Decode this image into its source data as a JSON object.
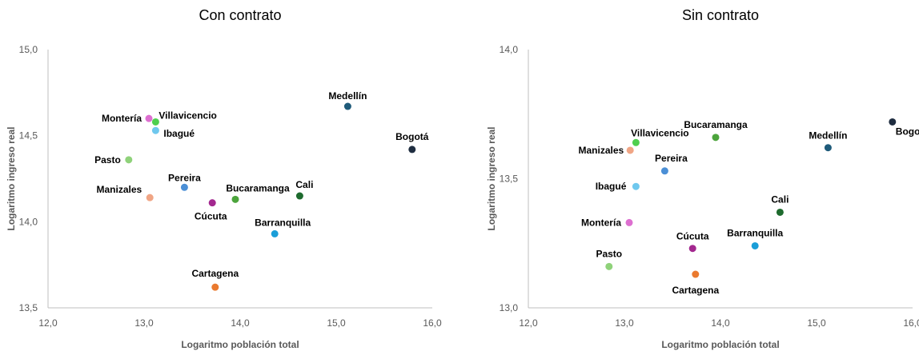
{
  "chart_data": [
    {
      "type": "scatter",
      "title": "Con contrato",
      "xlabel": "Logaritmo población total",
      "ylabel": "Logaritmo ingreso real",
      "xlim": [
        12.0,
        16.0
      ],
      "ylim": [
        13.5,
        15.0
      ],
      "xticks": [
        "12,0",
        "13,0",
        "14,0",
        "15,0",
        "16,0"
      ],
      "yticks": [
        "13,5",
        "14,0",
        "14,5",
        "15,0"
      ],
      "grid": false,
      "points": [
        {
          "label": "Bogotá",
          "x": 15.79,
          "y": 14.42,
          "color": "#1f2d40"
        },
        {
          "label": "Medellín",
          "x": 15.12,
          "y": 14.67,
          "color": "#1f5b7a"
        },
        {
          "label": "Cali",
          "x": 14.62,
          "y": 14.15,
          "color": "#1e6b2e"
        },
        {
          "label": "Barranquilla",
          "x": 14.36,
          "y": 13.93,
          "color": "#1a9ed8"
        },
        {
          "label": "Cartagena",
          "x": 13.74,
          "y": 13.62,
          "color": "#ea7a2f"
        },
        {
          "label": "Bucaramanga",
          "x": 13.95,
          "y": 14.13,
          "color": "#4ca43c"
        },
        {
          "label": "Cúcuta",
          "x": 13.71,
          "y": 14.11,
          "color": "#a3288f"
        },
        {
          "label": "Pereira",
          "x": 13.42,
          "y": 14.2,
          "color": "#4b8fd6"
        },
        {
          "label": "Ibagué",
          "x": 13.12,
          "y": 14.53,
          "color": "#6fc8ee"
        },
        {
          "label": "Manizales",
          "x": 13.06,
          "y": 14.14,
          "color": "#f0a585"
        },
        {
          "label": "Pasto",
          "x": 12.84,
          "y": 14.36,
          "color": "#8fd27a"
        },
        {
          "label": "Villavicencio",
          "x": 13.12,
          "y": 14.58,
          "color": "#4fcf4f"
        },
        {
          "label": "Montería",
          "x": 13.05,
          "y": 14.6,
          "color": "#dd6fd0"
        }
      ]
    },
    {
      "type": "scatter",
      "title": "Sin contrato",
      "xlabel": "Logaritmo población total",
      "ylabel": "Logaritmo ingreso real",
      "xlim": [
        12.0,
        16.0
      ],
      "ylim": [
        13.0,
        14.0
      ],
      "xticks": [
        "12,0",
        "13,0",
        "14,0",
        "15,0",
        "16,0"
      ],
      "yticks": [
        "13,0",
        "13,5",
        "14,0"
      ],
      "grid": false,
      "points": [
        {
          "label": "Bogotá",
          "x": 15.79,
          "y": 13.72,
          "color": "#1f2d40"
        },
        {
          "label": "Medellín",
          "x": 15.12,
          "y": 13.62,
          "color": "#1f5b7a"
        },
        {
          "label": "Cali",
          "x": 14.62,
          "y": 13.37,
          "color": "#1e6b2e"
        },
        {
          "label": "Barranquilla",
          "x": 14.36,
          "y": 13.24,
          "color": "#1a9ed8"
        },
        {
          "label": "Cartagena",
          "x": 13.74,
          "y": 13.13,
          "color": "#ea7a2f"
        },
        {
          "label": "Bucaramanga",
          "x": 13.95,
          "y": 13.66,
          "color": "#4ca43c"
        },
        {
          "label": "Cúcuta",
          "x": 13.71,
          "y": 13.23,
          "color": "#a3288f"
        },
        {
          "label": "Pereira",
          "x": 13.42,
          "y": 13.53,
          "color": "#4b8fd6"
        },
        {
          "label": "Ibagué",
          "x": 13.12,
          "y": 13.47,
          "color": "#6fc8ee"
        },
        {
          "label": "Manizales",
          "x": 13.06,
          "y": 13.61,
          "color": "#f0a585"
        },
        {
          "label": "Pasto",
          "x": 12.84,
          "y": 13.16,
          "color": "#8fd27a"
        },
        {
          "label": "Villavicencio",
          "x": 13.12,
          "y": 13.64,
          "color": "#4fcf4f"
        },
        {
          "label": "Montería",
          "x": 13.05,
          "y": 13.33,
          "color": "#dd6fd0"
        }
      ]
    }
  ]
}
